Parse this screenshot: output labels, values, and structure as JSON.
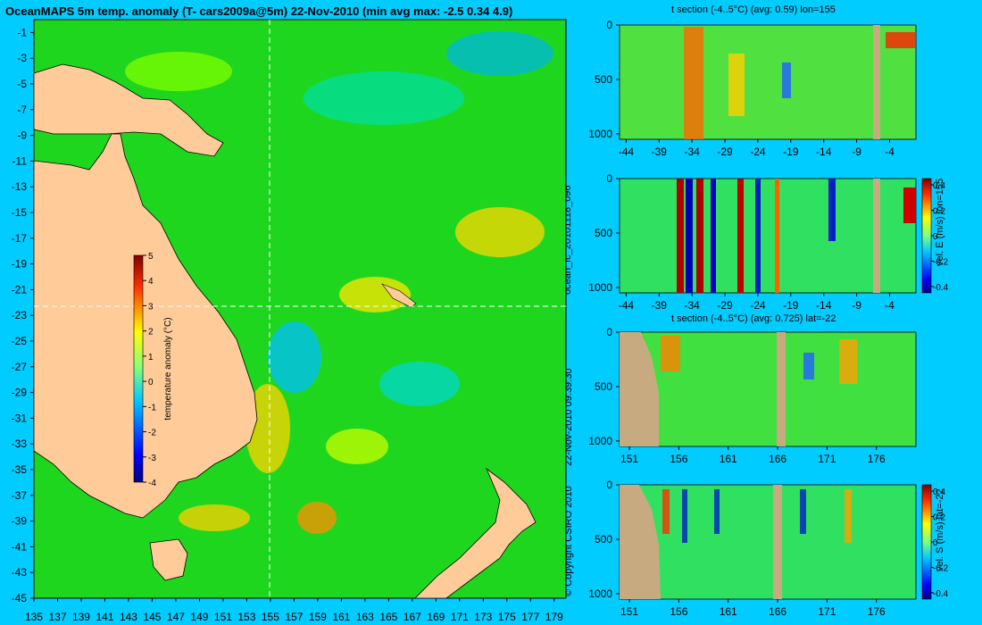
{
  "title": "OceanMAPS 5m temp. anomaly (T- cars2009a@5m) 22-Nov-2010 (min avg max: -2.5 0.34 4.9)",
  "side_labels": {
    "run_id": "ocean_fc_20101118_096",
    "copyright": "© Copyright CSIRO 2010",
    "timestamp": "22-Nov-2010 09:39:30"
  },
  "chart_data": [
    {
      "type": "heatmap",
      "title": "OceanMAPS 5m temp. anomaly (T- cars2009a@5m) 22-Nov-2010 (min avg max: -2.5 0.34 4.9)",
      "xlabel": "",
      "ylabel": "",
      "x_ticks": [
        135,
        137,
        139,
        141,
        143,
        145,
        147,
        149,
        151,
        153,
        155,
        157,
        159,
        161,
        163,
        165,
        167,
        169,
        171,
        173,
        175,
        177,
        179
      ],
      "y_ticks": [
        -1,
        -3,
        -5,
        -7,
        -9,
        -11,
        -13,
        -15,
        -17,
        -19,
        -21,
        -23,
        -25,
        -27,
        -29,
        -31,
        -33,
        -35,
        -37,
        -39,
        -41,
        -43,
        -45
      ],
      "xlim": [
        135,
        180
      ],
      "ylim": [
        -45,
        0
      ],
      "crosshair": {
        "lon": 155,
        "lat": -22
      },
      "colorbar": {
        "label": "temperature anomaly (°C)",
        "ticks": [
          5,
          4,
          3,
          2,
          1,
          0,
          -1,
          -2,
          -3,
          -4
        ],
        "range": [
          -4,
          5
        ]
      },
      "stats": {
        "min": -2.5,
        "avg": 0.34,
        "max": 4.9
      }
    },
    {
      "type": "heatmap",
      "title": "t section (-4..5°C) (avg: 0.59) lon=155",
      "x_ticks": [
        -44,
        -39,
        -34,
        -29,
        -24,
        -19,
        -14,
        -9,
        -4
      ],
      "y_ticks": [
        0,
        500,
        1000
      ],
      "xlim": [
        -45,
        0
      ],
      "ylim": [
        1050,
        0
      ],
      "avg": 0.59
    },
    {
      "type": "heatmap",
      "title": "",
      "x_ticks": [
        -44,
        -39,
        -34,
        -29,
        -24,
        -19,
        -14,
        -9,
        -4
      ],
      "y_ticks": [
        0,
        500,
        1000
      ],
      "xlim": [
        -45,
        0
      ],
      "ylim": [
        1050,
        0
      ],
      "colorbar": {
        "label": "vel. E (m/s) lon=155",
        "ticks": [
          0.4,
          0.2,
          0,
          -0.2,
          -0.4
        ],
        "range": [
          -0.45,
          0.45
        ]
      }
    },
    {
      "type": "heatmap",
      "title": "t section (-4..5°C) (avg: 0.725) lat=-22",
      "x_ticks": [
        151,
        156,
        161,
        166,
        171,
        176
      ],
      "y_ticks": [
        0,
        500,
        1000
      ],
      "xlim": [
        150,
        180
      ],
      "ylim": [
        1050,
        0
      ],
      "avg": 0.725
    },
    {
      "type": "heatmap",
      "title": "",
      "x_ticks": [
        151,
        156,
        161,
        166,
        171,
        176
      ],
      "y_ticks": [
        0,
        500,
        1000
      ],
      "xlim": [
        150,
        180
      ],
      "ylim": [
        1050,
        0
      ],
      "colorbar": {
        "label": "vel. S (m/s) lat=-22",
        "ticks": [
          0.4,
          0.2,
          0,
          -0.2,
          -0.4
        ],
        "range": [
          -0.45,
          0.45
        ]
      }
    }
  ]
}
